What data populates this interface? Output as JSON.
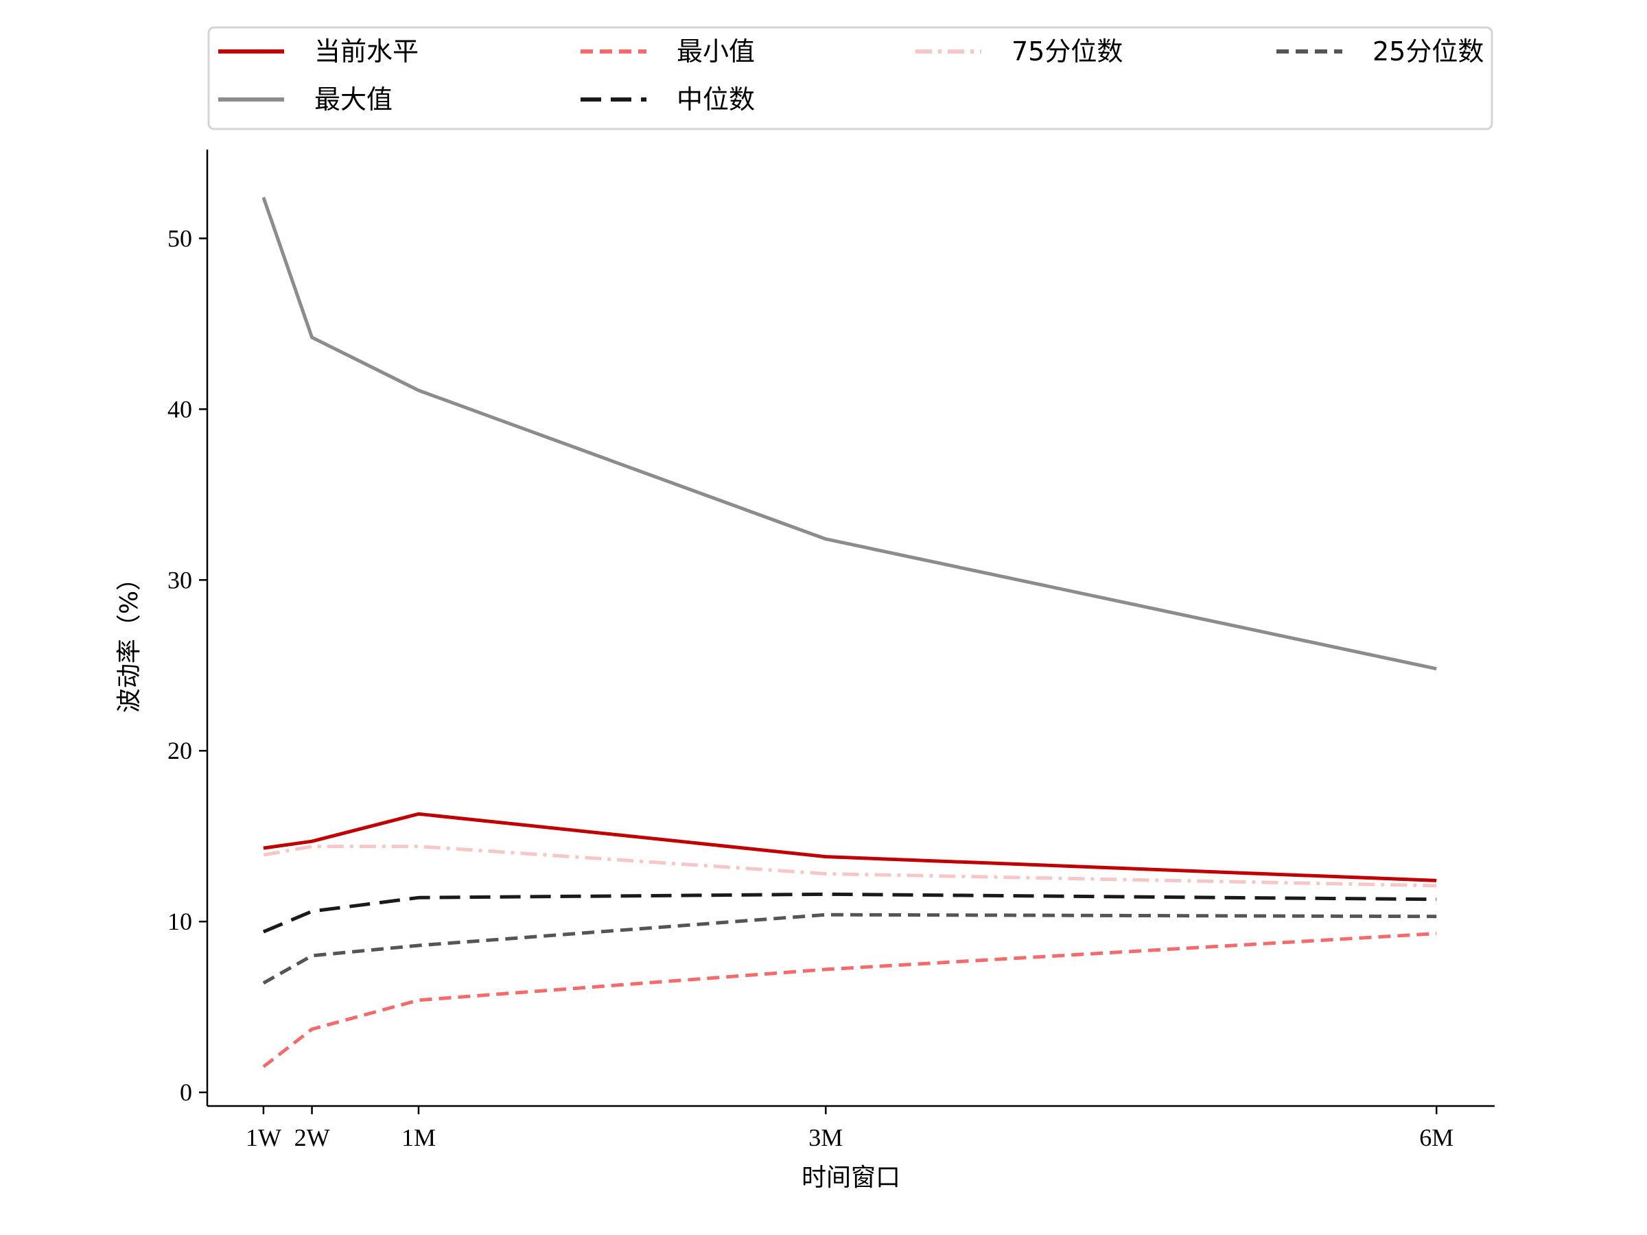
{
  "chart_data": {
    "type": "line",
    "title": "",
    "xlabel": "时间窗口",
    "ylabel": "波动率（%）",
    "x_ticks": [
      {
        "label": "1W",
        "x": 5
      },
      {
        "label": "2W",
        "x": 10
      },
      {
        "label": "1M",
        "x": 21
      },
      {
        "label": "3M",
        "x": 63
      },
      {
        "label": "6M",
        "x": 126
      }
    ],
    "xlim": [
      -0.8,
      132
    ],
    "ylim": [
      -0.8,
      55.2
    ],
    "y_ticks": [
      0,
      10,
      20,
      30,
      40,
      50
    ],
    "grid": false,
    "legend_position": "top",
    "series": [
      {
        "name": "当前水平",
        "color": "#c00000",
        "dash": "solid",
        "width": 5,
        "values": [
          14.3,
          14.7,
          16.3,
          13.8,
          12.4
        ]
      },
      {
        "name": "最小值",
        "color": "#f56b6b",
        "dash": "dashed",
        "width": 5,
        "values": [
          1.5,
          3.7,
          5.4,
          7.2,
          9.3
        ]
      },
      {
        "name": "75分位数",
        "color": "#f7c7c7",
        "dash": "dashdot",
        "width": 5,
        "values": [
          13.9,
          14.4,
          14.4,
          12.8,
          12.1
        ]
      },
      {
        "name": "25分位数",
        "color": "#555555",
        "dash": "dashed",
        "width": 5,
        "values": [
          6.4,
          8.0,
          8.6,
          10.4,
          10.3
        ]
      },
      {
        "name": "最大值",
        "color": "#8c8c8c",
        "dash": "solid",
        "width": 5,
        "values": [
          52.4,
          44.2,
          41.1,
          32.4,
          24.8
        ]
      },
      {
        "name": "中位数",
        "color": "#1a1a1a",
        "dash": "longdash",
        "width": 5,
        "values": [
          9.4,
          10.6,
          11.4,
          11.6,
          11.3
        ]
      }
    ]
  }
}
